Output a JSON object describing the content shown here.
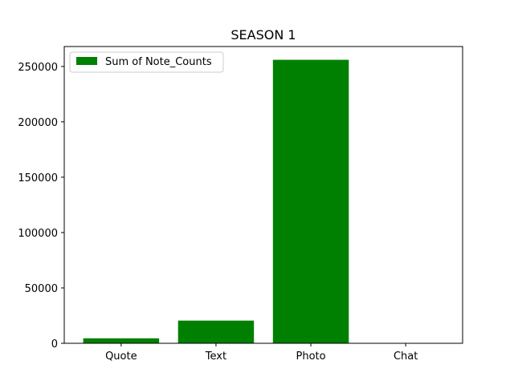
{
  "chart_data": {
    "type": "bar",
    "title": "SEASON 1",
    "xlabel": "",
    "ylabel": "",
    "categories": [
      "Quote",
      "Text",
      "Photo",
      "Chat"
    ],
    "series": [
      {
        "name": "Sum of Note_Counts",
        "values": [
          4500,
          20500,
          256000,
          0
        ],
        "color": "#008000"
      }
    ],
    "ylim": [
      0,
      268000
    ],
    "yticks": [
      0,
      50000,
      100000,
      150000,
      200000,
      250000
    ],
    "grid": false,
    "legend_position": "top-left"
  }
}
